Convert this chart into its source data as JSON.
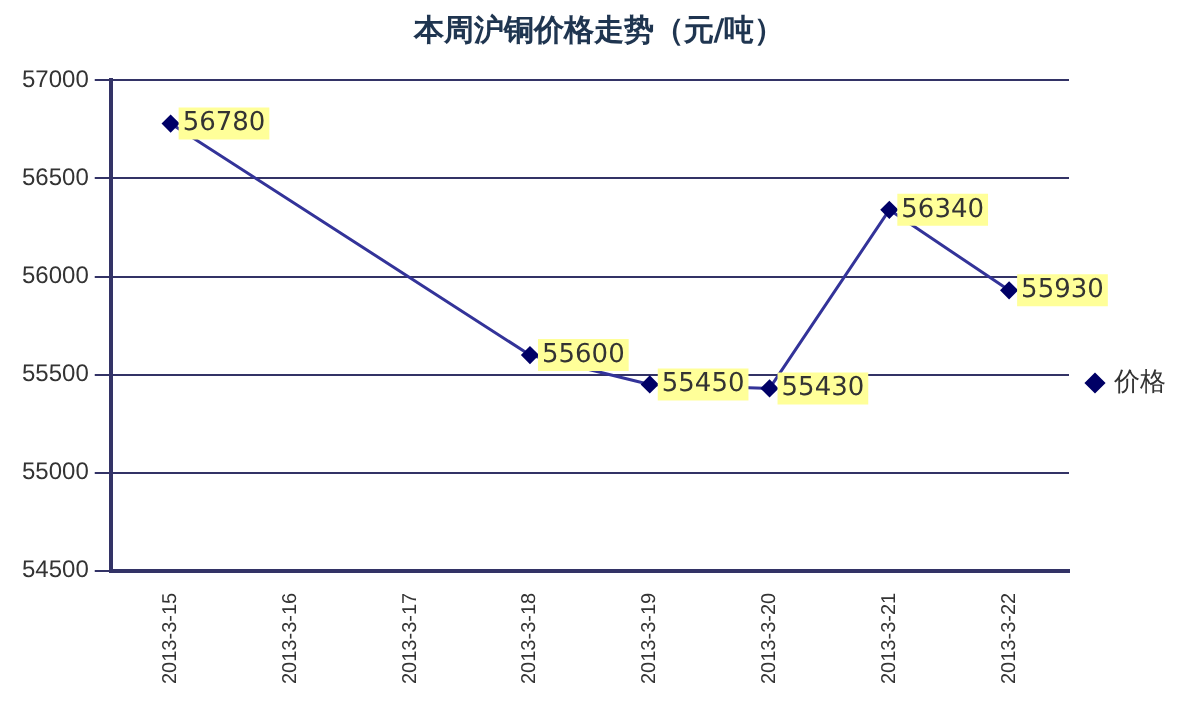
{
  "chart_data": {
    "type": "line",
    "title": "本周沪铜价格走势（元/吨）",
    "categories": [
      "2013-3-15",
      "2013-3-16",
      "2013-3-17",
      "2013-3-18",
      "2013-3-19",
      "2013-3-20",
      "2013-3-21",
      "2013-3-22"
    ],
    "series": [
      {
        "name": "价格",
        "color": "#333399",
        "values": [
          56780,
          null,
          null,
          55600,
          55450,
          55430,
          56340,
          55930
        ]
      }
    ],
    "ylim": [
      54500,
      57000
    ],
    "yticks": [
      54500,
      55000,
      55500,
      56000,
      56500,
      57000
    ],
    "grid": "y",
    "legend": "right",
    "marker": "diamond",
    "line_style": "solid",
    "data_labels": true
  }
}
